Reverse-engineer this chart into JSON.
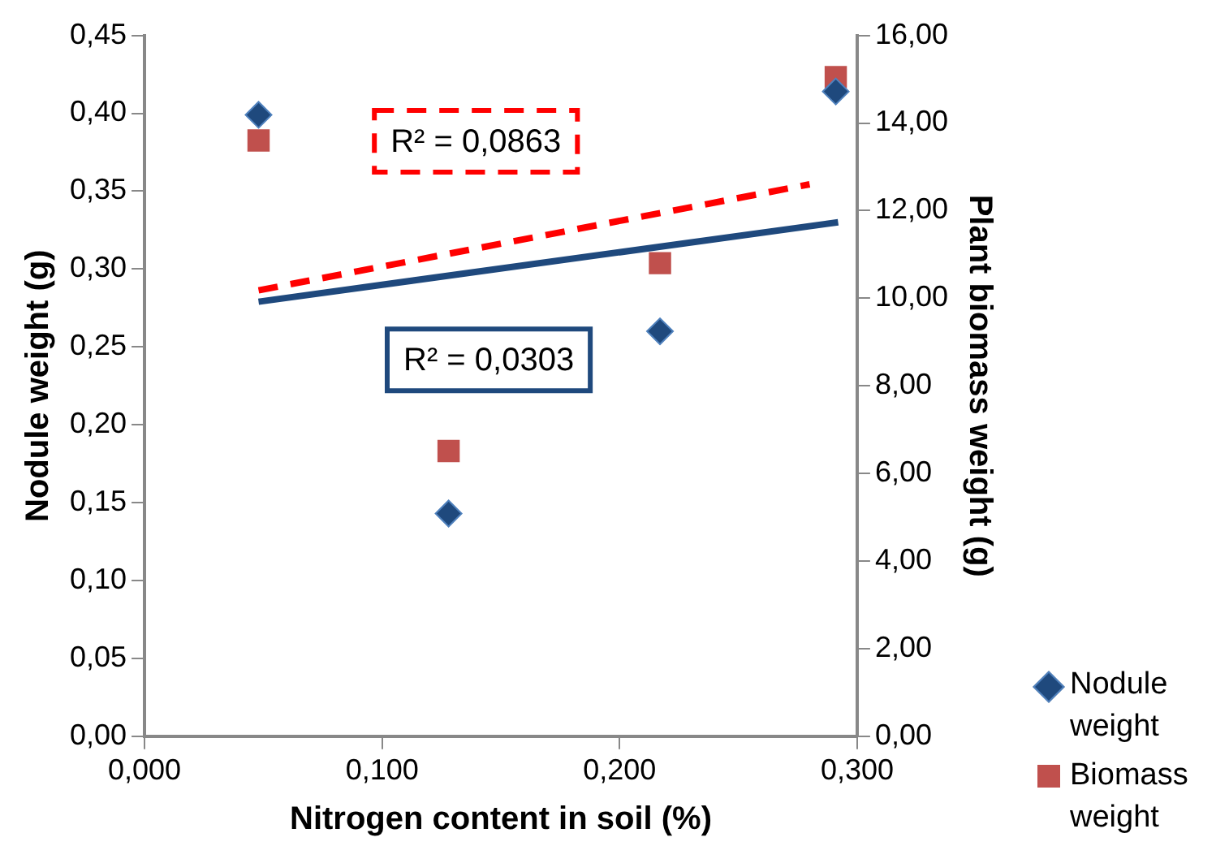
{
  "chart_data": {
    "type": "scatter",
    "xlabel": "Nitrogen content in soil (%)",
    "ylabel": "Nodule weight (g)",
    "y2label": "Plant biomass weight (g)",
    "x": [
      0.048,
      0.128,
      0.217,
      0.291
    ],
    "series": [
      {
        "name": "Nodule weight",
        "type": "scatter",
        "marker": "diamond",
        "color": "#1f497d",
        "values": [
          0.399,
          0.143,
          0.26,
          0.414
        ]
      },
      {
        "name": "Biomass weight",
        "type": "scatter",
        "marker": "square",
        "color": "#c0504d",
        "axis": "y2",
        "values": [
          13.6,
          6.51,
          10.8,
          15.05
        ]
      },
      {
        "type": "line",
        "marker": "none",
        "line_style": "solid",
        "color": "#1f497d",
        "x": [
          0.048,
          0.292
        ],
        "values": [
          0.279,
          0.33
        ]
      },
      {
        "type": "line",
        "marker": "none",
        "line_style": "dashed",
        "color": "#ff0000",
        "axis": "y2",
        "x": [
          0.048,
          0.28
        ],
        "values": [
          10.18,
          12.6
        ]
      }
    ],
    "annotations": [
      "R² = 0,0863",
      "R² = 0,0303"
    ],
    "xlim": [
      0,
      0.3
    ],
    "xticks": [
      {
        "value": 0,
        "label": "0,000"
      },
      {
        "value": 0.1,
        "label": "0,100"
      },
      {
        "value": 0.2,
        "label": "0,200"
      },
      {
        "value": 0.3,
        "label": "0,300"
      }
    ],
    "ylim": [
      0,
      0.45
    ],
    "yticks": [
      {
        "value": 0,
        "label": "0,00"
      },
      {
        "value": 0.05,
        "label": "0,05"
      },
      {
        "value": 0.1,
        "label": "0,10"
      },
      {
        "value": 0.15,
        "label": "0,15"
      },
      {
        "value": 0.2,
        "label": "0,20"
      },
      {
        "value": 0.25,
        "label": "0,25"
      },
      {
        "value": 0.3,
        "label": "0,30"
      },
      {
        "value": 0.35,
        "label": "0,35"
      },
      {
        "value": 0.4,
        "label": "0,40"
      },
      {
        "value": 0.45,
        "label": "0,45"
      }
    ],
    "y2lim": [
      0,
      16
    ],
    "y2ticks": [
      {
        "value": 0,
        "label": "0,00"
      },
      {
        "value": 2,
        "label": "2,00"
      },
      {
        "value": 4,
        "label": "4,00"
      },
      {
        "value": 6,
        "label": "6,00"
      },
      {
        "value": 8,
        "label": "8,00"
      },
      {
        "value": 10,
        "label": "10,00"
      },
      {
        "value": 12,
        "label": "12,00"
      },
      {
        "value": 14,
        "label": "14,00"
      },
      {
        "value": 16,
        "label": "16,00"
      }
    ],
    "grid": false,
    "legend": "right"
  }
}
